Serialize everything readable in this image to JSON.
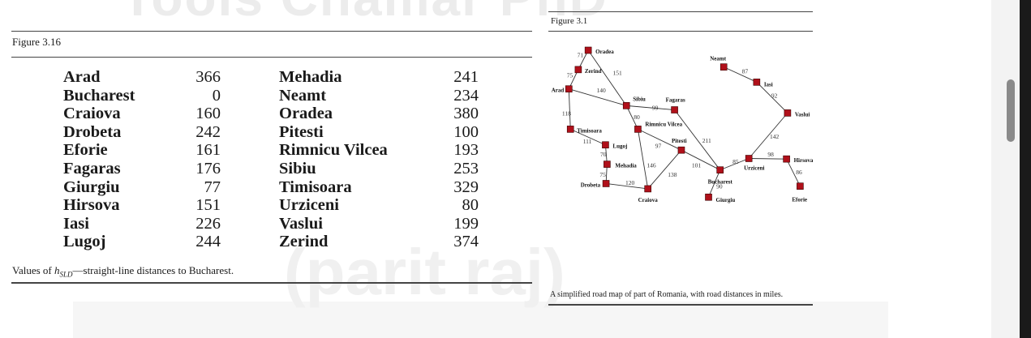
{
  "watermark": {
    "line1": "Tools Chamar PhD",
    "line2": "(parit raj)"
  },
  "figure316": {
    "label": "Figure 3.16",
    "caption_pre": "Values of ",
    "caption_h": "h",
    "caption_sub": "SLD",
    "caption_post": "—straight-line distances to Bucharest.",
    "rows": [
      {
        "city1": "Arad",
        "d1": "366",
        "city2": "Mehadia",
        "d2": "241"
      },
      {
        "city1": "Bucharest",
        "d1": "0",
        "city2": "Neamt",
        "d2": "234"
      },
      {
        "city1": "Craiova",
        "d1": "160",
        "city2": "Oradea",
        "d2": "380"
      },
      {
        "city1": "Drobeta",
        "d1": "242",
        "city2": "Pitesti",
        "d2": "100"
      },
      {
        "city1": "Eforie",
        "d1": "161",
        "city2": "Rimnicu Vilcea",
        "d2": "193"
      },
      {
        "city1": "Fagaras",
        "d1": "176",
        "city2": "Sibiu",
        "d2": "253"
      },
      {
        "city1": "Giurgiu",
        "d1": "77",
        "city2": "Timisoara",
        "d2": "329"
      },
      {
        "city1": "Hirsova",
        "d1": "151",
        "city2": "Urziceni",
        "d2": "80"
      },
      {
        "city1": "Iasi",
        "d1": "226",
        "city2": "Vaslui",
        "d2": "199"
      },
      {
        "city1": "Lugoj",
        "d1": "244",
        "city2": "Zerind",
        "d2": "374"
      }
    ]
  },
  "figure31": {
    "label": "Figure 3.1",
    "caption": "A simplified road map of part of Romania, with road distances in miles.",
    "node_color": "#b0101a",
    "cities": [
      {
        "id": "oradea",
        "name": "Oradea"
      },
      {
        "id": "zerind",
        "name": "Zerind"
      },
      {
        "id": "arad",
        "name": "Arad"
      },
      {
        "id": "timisoara",
        "name": "Timisoara"
      },
      {
        "id": "lugoj",
        "name": "Lugoj"
      },
      {
        "id": "mehadia",
        "name": "Mehadia"
      },
      {
        "id": "drobeta",
        "name": "Drobeta"
      },
      {
        "id": "craiova",
        "name": "Craiova"
      },
      {
        "id": "sibiu",
        "name": "Sibiu"
      },
      {
        "id": "rimnicu",
        "name": "Rimnicu Vilcea"
      },
      {
        "id": "fagaras",
        "name": "Fagaras"
      },
      {
        "id": "pitesti",
        "name": "Pitesti"
      },
      {
        "id": "bucharest",
        "name": "Bucharest"
      },
      {
        "id": "giurgiu",
        "name": "Giurgiu"
      },
      {
        "id": "urziceni",
        "name": "Urziceni"
      },
      {
        "id": "hirsova",
        "name": "Hirsova"
      },
      {
        "id": "eforie",
        "name": "Eforie"
      },
      {
        "id": "vaslui",
        "name": "Vaslui"
      },
      {
        "id": "iasi",
        "name": "Iasi"
      },
      {
        "id": "neamt",
        "name": "Neamt"
      }
    ],
    "roads": [
      {
        "from": "oradea",
        "to": "zerind",
        "distance": "71"
      },
      {
        "from": "zerind",
        "to": "arad",
        "distance": "75"
      },
      {
        "from": "oradea",
        "to": "sibiu",
        "distance": "151"
      },
      {
        "from": "arad",
        "to": "sibiu",
        "distance": "140"
      },
      {
        "from": "arad",
        "to": "timisoara",
        "distance": "118"
      },
      {
        "from": "timisoara",
        "to": "lugoj",
        "distance": "111"
      },
      {
        "from": "lugoj",
        "to": "mehadia",
        "distance": "70"
      },
      {
        "from": "mehadia",
        "to": "drobeta",
        "distance": "75"
      },
      {
        "from": "drobeta",
        "to": "craiova",
        "distance": "120"
      },
      {
        "from": "sibiu",
        "to": "fagaras",
        "distance": "99"
      },
      {
        "from": "sibiu",
        "to": "rimnicu",
        "distance": "80"
      },
      {
        "from": "rimnicu",
        "to": "pitesti",
        "distance": "97"
      },
      {
        "from": "rimnicu",
        "to": "craiova",
        "distance": "146"
      },
      {
        "from": "craiova",
        "to": "pitesti",
        "distance": "138"
      },
      {
        "from": "fagaras",
        "to": "bucharest",
        "distance": "211"
      },
      {
        "from": "pitesti",
        "to": "bucharest",
        "distance": "101"
      },
      {
        "from": "bucharest",
        "to": "giurgiu",
        "distance": "90"
      },
      {
        "from": "bucharest",
        "to": "urziceni",
        "distance": "85"
      },
      {
        "from": "urziceni",
        "to": "hirsova",
        "distance": "98"
      },
      {
        "from": "hirsova",
        "to": "eforie",
        "distance": "86"
      },
      {
        "from": "urziceni",
        "to": "vaslui",
        "distance": "142"
      },
      {
        "from": "vaslui",
        "to": "iasi",
        "distance": "92"
      },
      {
        "from": "iasi",
        "to": "neamt",
        "distance": "87"
      }
    ]
  },
  "scrollbar": {
    "position": 0.16
  }
}
